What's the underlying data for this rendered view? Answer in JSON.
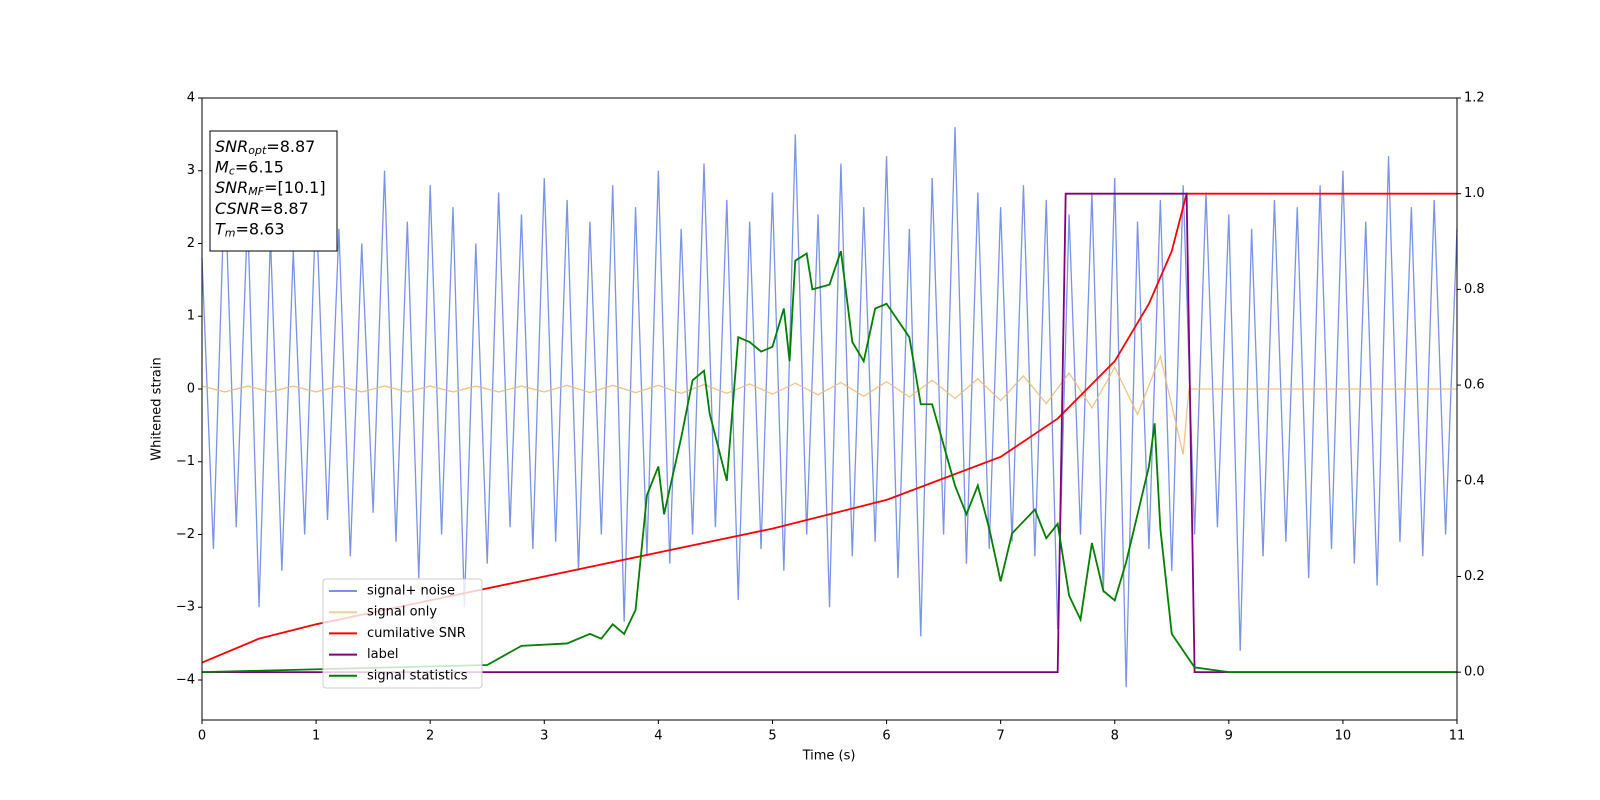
{
  "chart_data": {
    "type": "line",
    "xlabel": "Time (s)",
    "ylabel": "Whitened strain",
    "xlim": [
      0,
      11
    ],
    "ylim": [
      -4.55,
      4
    ],
    "y2lim": [
      -0.1,
      1.2
    ],
    "xticks": [
      0,
      1,
      2,
      3,
      4,
      5,
      6,
      7,
      8,
      9,
      10,
      11
    ],
    "yticks": [
      {
        "value": -4,
        "label": "−4"
      },
      {
        "value": -3,
        "label": "−3"
      },
      {
        "value": -2,
        "label": "−2"
      },
      {
        "value": -1,
        "label": "−1"
      },
      0,
      1,
      2,
      3,
      4
    ],
    "y2ticks": [
      {
        "value": 0,
        "label": "0.0"
      },
      0.2,
      0.4,
      0.6,
      0.8,
      {
        "value": 1,
        "label": "1.0"
      },
      1.2
    ],
    "legend": "lower left",
    "annotations": [
      {
        "base": "SNR",
        "sub": "opt",
        "rest": "=8.87"
      },
      {
        "base": "M",
        "sub": "c",
        "rest": "=6.15"
      },
      {
        "base": "SNR",
        "sub": "MF",
        "rest": "=[10.1]"
      },
      {
        "base": "CSNR",
        "rest": "=8.87"
      },
      {
        "base": "T",
        "sub": "m",
        "rest": "=8.63"
      }
    ],
    "series": [
      {
        "name": "signal+ noise",
        "color": "#7893e8",
        "x": [
          0,
          0.1,
          0.2,
          0.3,
          0.4,
          0.5,
          0.6,
          0.7,
          0.8,
          0.9,
          1,
          1.1,
          1.2,
          1.3,
          1.4,
          1.5,
          1.6,
          1.7,
          1.8,
          1.9,
          2,
          2.1,
          2.2,
          2.3,
          2.4,
          2.5,
          2.6,
          2.7,
          2.8,
          2.9,
          3,
          3.1,
          3.2,
          3.3,
          3.4,
          3.5,
          3.6,
          3.7,
          3.8,
          3.9,
          4,
          4.1,
          4.2,
          4.3,
          4.4,
          4.5,
          4.6,
          4.7,
          4.8,
          4.9,
          5,
          5.1,
          5.2,
          5.3,
          5.4,
          5.5,
          5.6,
          5.7,
          5.8,
          5.9,
          6,
          6.1,
          6.2,
          6.3,
          6.4,
          6.5,
          6.6,
          6.7,
          6.8,
          6.9,
          7,
          7.1,
          7.2,
          7.3,
          7.4,
          7.5,
          7.6,
          7.7,
          7.8,
          7.9,
          8,
          8.1,
          8.2,
          8.3,
          8.4,
          8.5,
          8.6,
          8.7,
          8.8,
          8.9,
          9,
          9.1,
          9.2,
          9.3,
          9.4,
          9.5,
          9.6,
          9.7,
          9.8,
          9.9,
          10,
          10.1,
          10.2,
          10.3,
          10.4,
          10.5,
          10.6,
          10.7,
          10.8,
          10.9,
          11
        ],
        "values": [
          1.8,
          -2.2,
          2.9,
          -1.9,
          2.4,
          -3.0,
          2.1,
          -2.5,
          1.9,
          -2.0,
          2.6,
          -1.8,
          2.2,
          -2.3,
          2.0,
          -1.7,
          3.0,
          -2.1,
          2.3,
          -2.6,
          2.8,
          -2.0,
          2.5,
          -3.0,
          2.0,
          -2.4,
          2.7,
          -1.9,
          2.4,
          -2.2,
          2.9,
          -2.1,
          2.6,
          -2.5,
          2.3,
          -2.0,
          2.8,
          -3.2,
          2.5,
          -2.3,
          3.0,
          -2.4,
          2.2,
          -2.0,
          3.1,
          -1.9,
          2.6,
          -2.9,
          2.3,
          -2.2,
          2.7,
          -2.5,
          3.5,
          -2.0,
          2.4,
          -3.0,
          3.1,
          -2.3,
          2.5,
          -2.1,
          3.2,
          -2.6,
          2.2,
          -3.4,
          2.9,
          -2.0,
          3.6,
          -2.4,
          2.7,
          -2.2,
          2.5,
          -2.1,
          2.8,
          -2.3,
          2.6,
          -3.3,
          2.4,
          -2.0,
          2.7,
          -2.8,
          2.9,
          -4.1,
          2.3,
          -2.2,
          2.6,
          -2.5,
          2.8,
          -2.0,
          2.7,
          -1.9,
          2.4,
          -3.6,
          2.2,
          -2.3,
          2.6,
          -2.1,
          2.5,
          -2.6,
          2.8,
          -2.2,
          3.0,
          -2.4,
          2.3,
          -2.7,
          3.2,
          -2.1,
          2.5,
          -2.3,
          2.6,
          -2.0,
          2.2
        ]
      },
      {
        "name": "signal only",
        "color": "#f0b870",
        "x": [
          0,
          0.2,
          0.4,
          0.6,
          0.8,
          1,
          1.2,
          1.4,
          1.6,
          1.8,
          2,
          2.2,
          2.4,
          2.6,
          2.8,
          3,
          3.2,
          3.4,
          3.6,
          3.8,
          4,
          4.2,
          4.4,
          4.6,
          4.8,
          5,
          5.2,
          5.4,
          5.6,
          5.8,
          6,
          6.2,
          6.4,
          6.6,
          6.8,
          7,
          7.2,
          7.4,
          7.6,
          7.8,
          8,
          8.2,
          8.4,
          8.6,
          8.65,
          11
        ],
        "values": [
          0.04,
          -0.04,
          0.04,
          -0.04,
          0.04,
          -0.04,
          0.04,
          -0.04,
          0.04,
          -0.04,
          0.04,
          -0.04,
          0.04,
          -0.04,
          0.04,
          -0.04,
          0.05,
          -0.05,
          0.05,
          -0.05,
          0.05,
          -0.06,
          0.06,
          -0.06,
          0.07,
          -0.07,
          0.08,
          -0.08,
          0.09,
          -0.1,
          0.1,
          -0.11,
          0.12,
          -0.13,
          0.14,
          -0.16,
          0.18,
          -0.2,
          0.22,
          -0.26,
          0.3,
          -0.35,
          0.45,
          -0.9,
          0,
          0
        ]
      },
      {
        "name": "cumilative SNR",
        "color": "#ff0000",
        "axis": "y2",
        "x": [
          0,
          0.5,
          1,
          2,
          3,
          4,
          5,
          6,
          7,
          7.5,
          8,
          8.3,
          8.5,
          8.63,
          11
        ],
        "values": [
          0.02,
          0.07,
          0.1,
          0.15,
          0.2,
          0.25,
          0.3,
          0.36,
          0.45,
          0.53,
          0.65,
          0.77,
          0.88,
          1,
          1
        ]
      },
      {
        "name": "label",
        "color": "#800080",
        "axis": "y2",
        "x": [
          0,
          7.5,
          7.57,
          8.63,
          8.7,
          11
        ],
        "values": [
          0,
          0,
          1,
          1,
          0,
          0
        ]
      },
      {
        "name": "signal statistics",
        "color": "#008000",
        "axis": "y2",
        "x": [
          0,
          2.5,
          2.8,
          3.2,
          3.4,
          3.5,
          3.6,
          3.7,
          3.8,
          3.9,
          4,
          4.05,
          4.2,
          4.3,
          4.4,
          4.45,
          4.6,
          4.7,
          4.8,
          4.9,
          5,
          5.1,
          5.15,
          5.2,
          5.3,
          5.35,
          5.5,
          5.6,
          5.7,
          5.8,
          5.9,
          6,
          6.2,
          6.3,
          6.4,
          6.6,
          6.7,
          6.8,
          6.9,
          7,
          7.1,
          7.3,
          7.4,
          7.5,
          7.6,
          7.7,
          7.8,
          7.9,
          8,
          8.1,
          8.3,
          8.35,
          8.4,
          8.5,
          8.7,
          9,
          11
        ],
        "values": [
          0,
          0.015,
          0.055,
          0.06,
          0.08,
          0.07,
          0.1,
          0.08,
          0.13,
          0.37,
          0.43,
          0.33,
          0.49,
          0.61,
          0.63,
          0.54,
          0.4,
          0.7,
          0.69,
          0.67,
          0.68,
          0.76,
          0.65,
          0.86,
          0.875,
          0.8,
          0.81,
          0.88,
          0.69,
          0.65,
          0.76,
          0.77,
          0.7,
          0.56,
          0.56,
          0.39,
          0.33,
          0.39,
          0.3,
          0.19,
          0.29,
          0.34,
          0.28,
          0.31,
          0.16,
          0.11,
          0.27,
          0.17,
          0.15,
          0.23,
          0.43,
          0.52,
          0.3,
          0.08,
          0.01,
          0,
          0
        ]
      }
    ]
  }
}
